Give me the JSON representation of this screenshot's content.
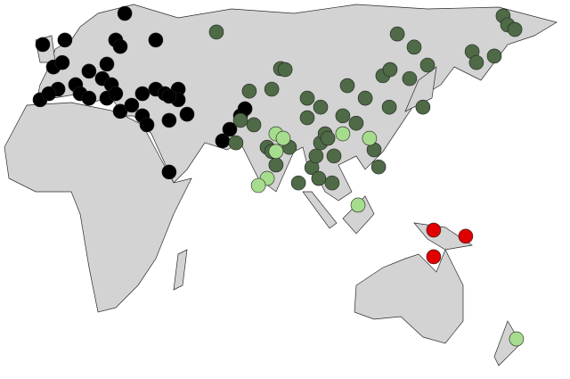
{
  "map": {
    "groups": [
      {
        "color": "#000000",
        "points": [
          [
            26.7,
            61.1
          ],
          [
            -4.0,
            51.4
          ],
          [
            4.3,
            52.8
          ],
          [
            23.3,
            52.8
          ],
          [
            25.0,
            50.8
          ],
          [
            38.3,
            52.8
          ],
          [
            0,
            44.4
          ],
          [
            3.3,
            45.8
          ],
          [
            13.3,
            43.1
          ],
          [
            20.0,
            45.3
          ],
          [
            18.3,
            40.8
          ],
          [
            21.7,
            38.9
          ],
          [
            8.3,
            38.9
          ],
          [
            10.0,
            36.1
          ],
          [
            1.7,
            37.5
          ],
          [
            -5.0,
            34.2
          ],
          [
            -1.7,
            36.1
          ],
          [
            13.3,
            34.7
          ],
          [
            20.0,
            34.7
          ],
          [
            23.3,
            36.1
          ],
          [
            25.0,
            30.6
          ],
          [
            33.3,
            36.1
          ],
          [
            38.3,
            37.5
          ],
          [
            41.7,
            36.1
          ],
          [
            46.7,
            37.5
          ],
          [
            46.7,
            34.2
          ],
          [
            43.3,
            35.3
          ],
          [
            33.3,
            29.2
          ],
          [
            35.0,
            26.4
          ],
          [
            43.3,
            27.8
          ],
          [
            50.0,
            29.7
          ],
          [
            63.3,
            21.4
          ],
          [
            66.0,
            25.0
          ],
          [
            70.0,
            29.2
          ],
          [
            71.7,
            31.4
          ],
          [
            43.3,
            11.7
          ],
          [
            29.3,
            32.5
          ]
        ]
      },
      {
        "color": "#4e6a46",
        "points": [
          [
            61.0,
            55.3
          ],
          [
            128.7,
            54.7
          ],
          [
            135.0,
            50.6
          ],
          [
            168.3,
            60.3
          ],
          [
            170.0,
            57.5
          ],
          [
            172.7,
            56.1
          ],
          [
            156.7,
            49.2
          ],
          [
            158.3,
            45.8
          ],
          [
            165.0,
            47.8
          ],
          [
            140.0,
            45.0
          ],
          [
            133.3,
            40.8
          ],
          [
            123.3,
            41.7
          ],
          [
            126.0,
            43.6
          ],
          [
            85.0,
            43.9
          ],
          [
            86.7,
            43.6
          ],
          [
            81.7,
            37.5
          ],
          [
            73.3,
            36.9
          ],
          [
            110.0,
            38.6
          ],
          [
            125.7,
            31.9
          ],
          [
            138.3,
            31.9
          ],
          [
            116.7,
            34.7
          ],
          [
            113.3,
            26.9
          ],
          [
            108.3,
            29.2
          ],
          [
            100.0,
            31.9
          ],
          [
            95.0,
            34.7
          ],
          [
            95.0,
            28.6
          ],
          [
            70.0,
            27.8
          ],
          [
            75.0,
            26.4
          ],
          [
            68.3,
            20.8
          ],
          [
            80.0,
            19.4
          ],
          [
            88.3,
            19.4
          ],
          [
            83.3,
            13.9
          ],
          [
            91.7,
            8.3
          ],
          [
            96.7,
            13.1
          ],
          [
            98.3,
            16.7
          ],
          [
            100.0,
            20.8
          ],
          [
            101.7,
            23.6
          ],
          [
            105.0,
            16.7
          ],
          [
            99.3,
            9.7
          ],
          [
            104.3,
            8.3
          ],
          [
            120.0,
            18.6
          ],
          [
            121.7,
            13.3
          ],
          [
            81.7,
            18.1
          ],
          [
            102.7,
            22.2
          ]
        ]
      },
      {
        "color": "#a6dc8e",
        "points": [
          [
            83.3,
            23.6
          ],
          [
            86.0,
            22.2
          ],
          [
            108.3,
            23.6
          ],
          [
            118.3,
            22.2
          ],
          [
            83.3,
            18.1
          ],
          [
            80.0,
            9.7
          ],
          [
            76.7,
            7.5
          ],
          [
            114.0,
            1.4
          ],
          [
            173.3,
            -40.3
          ]
        ]
      },
      {
        "color": "#e00000",
        "points": [
          [
            142.3,
            -6.4
          ],
          [
            154.3,
            -8.3
          ],
          [
            142.3,
            -14.7
          ]
        ]
      }
    ]
  }
}
